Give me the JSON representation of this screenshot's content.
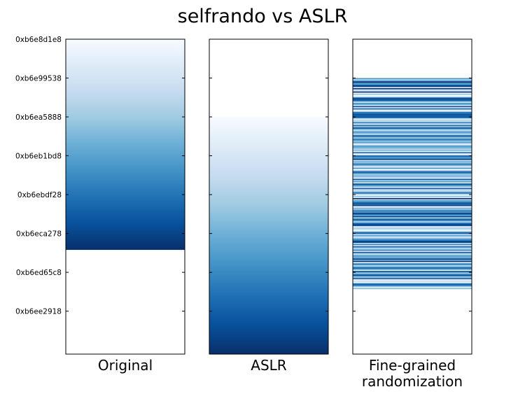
{
  "chart_data": {
    "type": "heatmap",
    "title": "selfrando vs ASLR",
    "colormap": "Blues",
    "y_axis": {
      "scale": "memory address",
      "inverted": true,
      "range": [
        "0xb6e8d1e8",
        "0xb6ef00e0"
      ],
      "tick_labels": [
        "0xb6e8d1e8",
        "0xb6e99538",
        "0xb6ea5888",
        "0xb6eb1bd8",
        "0xb6ebdf28",
        "0xb6eca278",
        "0xb6ed65c8",
        "0xb6ee2918"
      ]
    },
    "panels": [
      {
        "label": "Original",
        "start": "0xb6e8d1e8",
        "end": "0xb6ecf500",
        "ordering": "linear"
      },
      {
        "label": "ASLR",
        "start": "0xb6ea5888",
        "end": "0xb6ef00e0",
        "ordering": "linear"
      },
      {
        "label": "Fine-grained randomization",
        "label_lines": [
          "Fine-grained",
          "randomization"
        ],
        "start": "0xb6e99538",
        "end": "0xb6edb900",
        "ordering": "shuffled"
      }
    ]
  }
}
